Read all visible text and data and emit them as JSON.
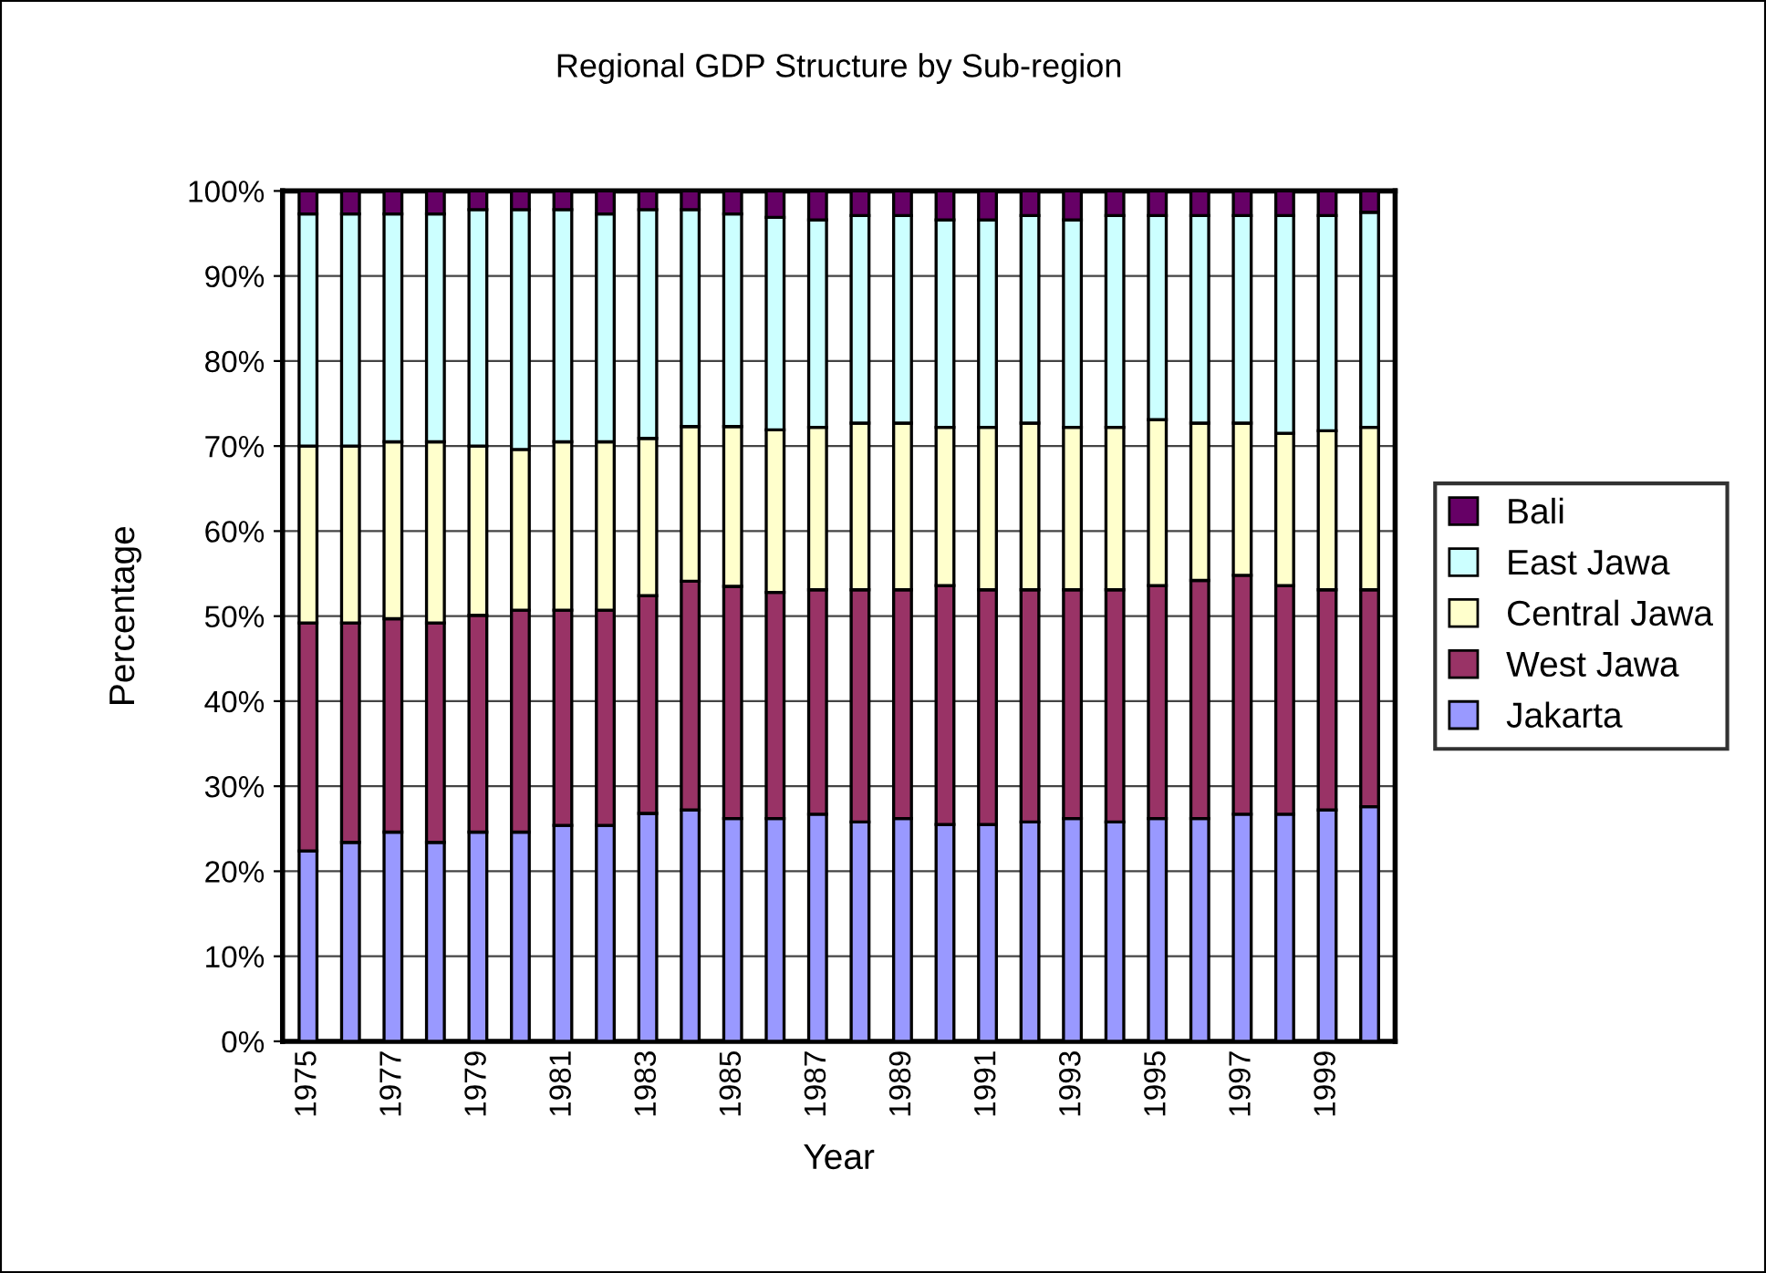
{
  "chart_data": {
    "type": "bar",
    "stacked": true,
    "title": "Regional GDP Structure by Sub-region",
    "xlabel": "Year",
    "ylabel": "Percentage",
    "categories": [
      "1975",
      null,
      "1977",
      null,
      "1979",
      null,
      "1981",
      null,
      "1983",
      null,
      "1985",
      null,
      "1987",
      null,
      "1989",
      null,
      "1991",
      null,
      "1993",
      null,
      "1995",
      null,
      "1997",
      null,
      "1999",
      null
    ],
    "series": [
      {
        "name": "Jakarta",
        "color": "#9999ff",
        "values": [
          22.4,
          23.4,
          24.6,
          23.4,
          24.6,
          24.6,
          25.4,
          25.4,
          26.8,
          27.2,
          26.2,
          26.2,
          26.7,
          25.8,
          26.2,
          25.5,
          25.5,
          25.8,
          26.2,
          25.8,
          26.2,
          26.2,
          26.7,
          26.7,
          27.2,
          27.6
        ]
      },
      {
        "name": "West Jawa",
        "color": "#993366",
        "values": [
          26.8,
          25.8,
          25.1,
          25.8,
          25.5,
          26.1,
          25.3,
          25.3,
          25.6,
          26.9,
          27.3,
          26.6,
          26.4,
          27.3,
          26.9,
          28.1,
          27.6,
          27.3,
          26.9,
          27.3,
          27.4,
          28.0,
          28.1,
          26.9,
          25.9,
          25.5
        ]
      },
      {
        "name": "Central Jawa",
        "color": "#ffffcc",
        "values": [
          20.8,
          20.8,
          20.8,
          21.3,
          19.9,
          18.9,
          19.8,
          19.8,
          18.5,
          18.2,
          18.8,
          19.1,
          19.1,
          19.6,
          19.6,
          18.6,
          19.1,
          19.6,
          19.1,
          19.1,
          19.5,
          18.5,
          17.9,
          17.9,
          18.7,
          19.1
        ]
      },
      {
        "name": "East Jawa",
        "color": "#ccffff",
        "values": [
          27.3,
          27.3,
          26.8,
          26.8,
          27.8,
          28.2,
          27.3,
          26.8,
          26.9,
          25.5,
          25.0,
          25.0,
          24.4,
          24.4,
          24.4,
          24.4,
          24.4,
          24.4,
          24.4,
          24.9,
          24.0,
          24.4,
          24.4,
          25.6,
          25.3,
          25.3
        ]
      },
      {
        "name": "Bali",
        "color": "#660066",
        "values": [
          2.7,
          2.7,
          2.7,
          2.7,
          2.2,
          2.2,
          2.2,
          2.7,
          2.2,
          2.2,
          2.7,
          3.1,
          3.4,
          2.9,
          2.9,
          3.4,
          3.4,
          2.9,
          3.4,
          2.9,
          2.9,
          2.9,
          2.9,
          2.9,
          2.9,
          2.5
        ]
      }
    ],
    "ylim": [
      0,
      100
    ],
    "yticks": [
      {
        "value": 0,
        "label": "0%"
      },
      {
        "value": 10,
        "label": "10%"
      },
      {
        "value": 20,
        "label": "20%"
      },
      {
        "value": 30,
        "label": "30%"
      },
      {
        "value": 40,
        "label": "40%"
      },
      {
        "value": 50,
        "label": "50%"
      },
      {
        "value": 60,
        "label": "60%"
      },
      {
        "value": 70,
        "label": "70%"
      },
      {
        "value": 80,
        "label": "80%"
      },
      {
        "value": 90,
        "label": "90%"
      },
      {
        "value": 100,
        "label": "100%"
      }
    ],
    "grid": "y",
    "legend": "right"
  }
}
